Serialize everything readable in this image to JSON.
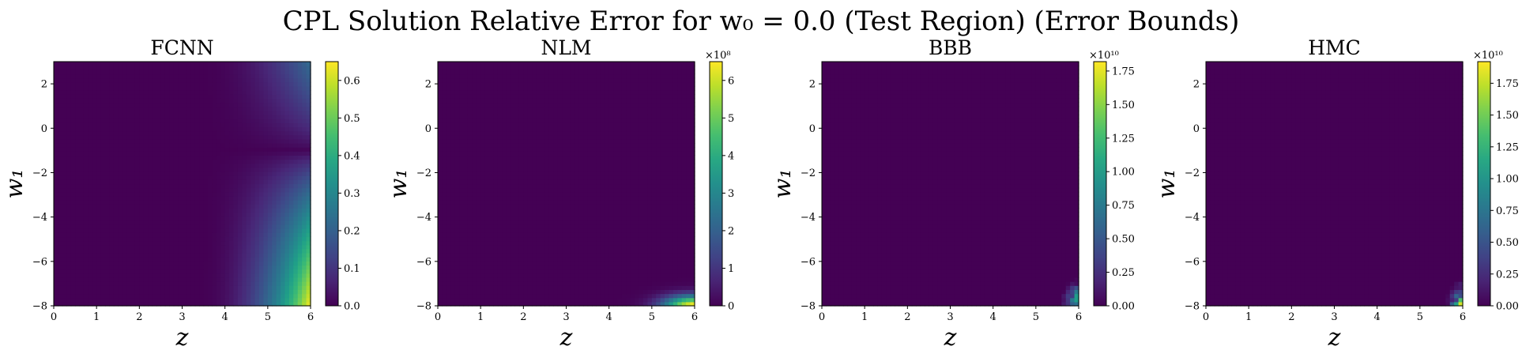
{
  "figure": {
    "title": "CPL Solution Relative Error for w₀ = 0.0 (Test Region) (Error Bounds)"
  },
  "chart_data": [
    {
      "type": "heatmap",
      "title": "FCNN",
      "xlabel": "z",
      "ylabel": "w₁",
      "xlim": [
        0,
        6
      ],
      "ylim": [
        -8,
        3
      ],
      "xticks": [
        "0",
        "1",
        "2",
        "3",
        "4",
        "5",
        "6"
      ],
      "yticks": [
        "2",
        "0",
        "−2",
        "−4",
        "−6",
        "−8"
      ],
      "colormap": "viridis",
      "colorbar": {
        "range": [
          0,
          0.65
        ],
        "ticks": [
          "0.0",
          "0.1",
          "0.2",
          "0.3",
          "0.4",
          "0.5",
          "0.6"
        ],
        "multiplier": ""
      },
      "pattern": "smooth error rising with z beyond ~4, strongest at z=6, w1=-8 (~0.65); near-zero band at w1~-1"
    },
    {
      "type": "heatmap",
      "title": "NLM",
      "xlabel": "z",
      "ylabel": "w₁",
      "xlim": [
        0,
        6
      ],
      "ylim": [
        -8,
        3
      ],
      "xticks": [
        "0",
        "1",
        "2",
        "3",
        "4",
        "5",
        "6"
      ],
      "yticks": [
        "2",
        "0",
        "−2",
        "−4",
        "−6",
        "−8"
      ],
      "colormap": "viridis",
      "colorbar": {
        "range": [
          0,
          6.5
        ],
        "ticks": [
          "0",
          "1",
          "2",
          "3",
          "4",
          "5",
          "6"
        ],
        "multiplier": "×10⁸"
      },
      "pattern": "near zero everywhere except sharp corner at z=6, w1=-8"
    },
    {
      "type": "heatmap",
      "title": "BBB",
      "xlabel": "z",
      "ylabel": "w₁",
      "xlim": [
        0,
        6
      ],
      "ylim": [
        -8,
        3
      ],
      "xticks": [
        "0",
        "1",
        "2",
        "3",
        "4",
        "5",
        "6"
      ],
      "yticks": [
        "2",
        "0",
        "−2",
        "−4",
        "−6",
        "−8"
      ],
      "colormap": "viridis",
      "colorbar": {
        "range": [
          0,
          1.82
        ],
        "ticks": [
          "0.00",
          "0.25",
          "0.50",
          "0.75",
          "1.00",
          "1.25",
          "1.50",
          "1.75"
        ],
        "multiplier": "×10¹⁰"
      },
      "pattern": "near zero everywhere except noisy pixelated corner at z=6, w1=-8"
    },
    {
      "type": "heatmap",
      "title": "HMC",
      "xlabel": "z",
      "ylabel": "w₁",
      "xlim": [
        0,
        6
      ],
      "ylim": [
        -8,
        3
      ],
      "xticks": [
        "0",
        "1",
        "2",
        "3",
        "4",
        "5",
        "6"
      ],
      "yticks": [
        "2",
        "0",
        "−2",
        "−4",
        "−6",
        "−8"
      ],
      "colormap": "viridis",
      "colorbar": {
        "range": [
          0,
          1.92
        ],
        "ticks": [
          "0.00",
          "0.25",
          "0.50",
          "0.75",
          "1.00",
          "1.25",
          "1.50",
          "1.75"
        ],
        "multiplier": "×10¹⁰"
      },
      "pattern": "near zero everywhere except noisy pixelated corner at z=6, w1=-8"
    }
  ]
}
